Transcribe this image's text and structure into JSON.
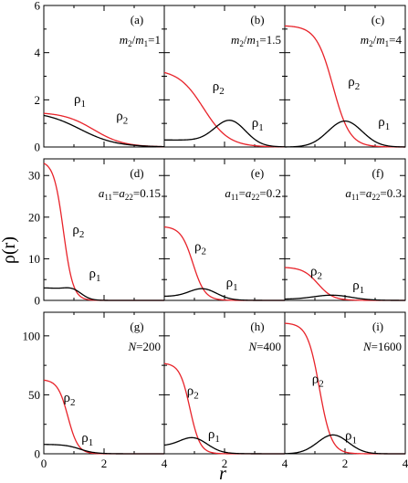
{
  "chart_data": {
    "type": "line",
    "grid": false,
    "xlabel": "r",
    "ylabel": "ρ(r)",
    "xlim": [
      0,
      4
    ],
    "x_ticks": [
      "0",
      "2",
      "4"
    ],
    "colors": {
      "rho1": "#000000",
      "rho2": "#e8232a"
    },
    "rows": [
      {
        "ylim": [
          0,
          6
        ],
        "y_ticks": [
          "0",
          "2",
          "4",
          "6"
        ]
      },
      {
        "ylim": [
          0,
          34
        ],
        "y_ticks": [
          "0",
          "10",
          "20",
          "30"
        ]
      },
      {
        "ylim": [
          0,
          120
        ],
        "y_ticks": [
          "0",
          "50",
          "100"
        ]
      }
    ],
    "panels": [
      {
        "id": "a",
        "row": 0,
        "col": 0,
        "tag": "(a)",
        "label": "m2/m1=1",
        "label_parts": [
          [
            "m",
            1
          ],
          [
            "2",
            2
          ],
          [
            "/",
            0
          ],
          [
            "m",
            1
          ],
          [
            "1",
            2
          ],
          [
            "=1",
            0
          ]
        ],
        "rho1": {
          "amp": 1.52,
          "r0": 1.2,
          "w": 0.6,
          "peak": 0
        },
        "rho2": {
          "amp": 1.48,
          "r0": 1.65,
          "w": 0.5,
          "peak": 0
        },
        "rho1_label": [
          1.0,
          1.85
        ],
        "rho2_label": [
          2.4,
          1.15
        ]
      },
      {
        "id": "b",
        "row": 0,
        "col": 1,
        "tag": "(b)",
        "label": "m2/m1=1.5",
        "label_parts": [
          [
            "m",
            1
          ],
          [
            "2",
            2
          ],
          [
            "/",
            0
          ],
          [
            "m",
            1
          ],
          [
            "1",
            2
          ],
          [
            "=1.5",
            0
          ]
        ],
        "rho1": {
          "amp": 0.98,
          "r0": 2.2,
          "w": 0.45,
          "peak": 1,
          "base": 0.3
        },
        "rho2": {
          "amp": 3.3,
          "r0": 1.3,
          "w": 0.42,
          "peak": 0
        },
        "rho1_label": [
          2.9,
          0.85
        ],
        "rho2_label": [
          1.6,
          2.4
        ]
      },
      {
        "id": "c",
        "row": 0,
        "col": 2,
        "tag": "(c)",
        "label": "m2/m1=4",
        "label_parts": [
          [
            "m",
            1
          ],
          [
            "2",
            2
          ],
          [
            "/",
            0
          ],
          [
            "m",
            1
          ],
          [
            "1",
            2
          ],
          [
            "=4",
            0
          ]
        ],
        "rho1": {
          "amp": 1.1,
          "r0": 2.0,
          "w": 0.5,
          "peak": 1,
          "base": 0
        },
        "rho2": {
          "amp": 5.15,
          "r0": 1.6,
          "w": 0.28,
          "peak": 0
        },
        "rho1_label": [
          3.1,
          0.9
        ],
        "rho2_label": [
          2.1,
          2.6
        ]
      },
      {
        "id": "d",
        "row": 1,
        "col": 0,
        "tag": "(d)",
        "label": "a11=a22=0.15",
        "label_parts": [
          [
            "a",
            1
          ],
          [
            "11",
            2
          ],
          [
            "=",
            0
          ],
          [
            "a",
            1
          ],
          [
            "22",
            2
          ],
          [
            "=0.15",
            0
          ]
        ],
        "rho1": {
          "amp": 4.2,
          "r0": 1.0,
          "w": 0.35,
          "peak": 2,
          "base": 3.0
        },
        "rho2": {
          "amp": 33.5,
          "r0": 0.65,
          "w": 0.16,
          "peak": 0
        },
        "rho1_label": [
          1.5,
          5.5
        ],
        "rho2_label": [
          0.95,
          16
        ]
      },
      {
        "id": "e",
        "row": 1,
        "col": 1,
        "tag": "(e)",
        "label": "a11=a22=0.2",
        "label_parts": [
          [
            "a",
            1
          ],
          [
            "11",
            2
          ],
          [
            "=",
            0
          ],
          [
            "a",
            1
          ],
          [
            "22",
            2
          ],
          [
            "=0.2",
            0
          ]
        ],
        "rho1": {
          "amp": 2.3,
          "r0": 1.3,
          "w": 0.4,
          "peak": 1,
          "base": 1.0
        },
        "rho2": {
          "amp": 17.8,
          "r0": 0.95,
          "w": 0.2,
          "peak": 0
        },
        "rho1_label": [
          2.05,
          3.3
        ],
        "rho2_label": [
          1.0,
          12
        ]
      },
      {
        "id": "f",
        "row": 1,
        "col": 2,
        "tag": "(f)",
        "label": "a11=a22=0.3",
        "label_parts": [
          [
            "a",
            1
          ],
          [
            "11",
            2
          ],
          [
            "=",
            0
          ],
          [
            "a",
            1
          ],
          [
            "22",
            2
          ],
          [
            "=0.3",
            0
          ]
        ],
        "rho1": {
          "amp": 1.1,
          "r0": 1.6,
          "w": 0.55,
          "peak": 1,
          "base": 0.3
        },
        "rho2": {
          "amp": 8.0,
          "r0": 1.1,
          "w": 0.25,
          "peak": 0
        },
        "rho1_label": [
          2.25,
          2.6
        ],
        "rho2_label": [
          0.85,
          6.0
        ]
      },
      {
        "id": "g",
        "row": 2,
        "col": 0,
        "tag": "(g)",
        "label": "N=200",
        "label_parts": [
          [
            "N",
            1
          ],
          [
            "=200",
            0
          ]
        ],
        "rho1": {
          "amp": 8.0,
          "r0": 1.2,
          "w": 0.25,
          "peak": 0
        },
        "rho2": {
          "amp": 63,
          "r0": 0.8,
          "w": 0.17,
          "peak": 0
        },
        "rho1_label": [
          1.25,
          10
        ],
        "rho2_label": [
          0.65,
          44
        ]
      },
      {
        "id": "h",
        "row": 2,
        "col": 1,
        "tag": "(h)",
        "label": "N=400",
        "label_parts": [
          [
            "N",
            1
          ],
          [
            "=400",
            0
          ]
        ],
        "rho1": {
          "amp": 10,
          "r0": 1.0,
          "w": 0.4,
          "peak": 1,
          "base": 7
        },
        "rho2": {
          "amp": 77,
          "r0": 0.85,
          "w": 0.17,
          "peak": 0
        },
        "rho1_label": [
          1.45,
          13
        ],
        "rho2_label": [
          0.75,
          50
        ]
      },
      {
        "id": "i",
        "row": 2,
        "col": 2,
        "tag": "(i)",
        "label": "N=1600",
        "label_parts": [
          [
            "N",
            1
          ],
          [
            "=1600",
            0
          ]
        ],
        "rho1": {
          "amp": 16,
          "r0": 1.6,
          "w": 0.45,
          "peak": 1,
          "base": 0
        },
        "rho2": {
          "amp": 111,
          "r0": 1.15,
          "w": 0.2,
          "peak": 0
        },
        "rho1_label": [
          2.0,
          12
        ],
        "rho2_label": [
          0.9,
          60
        ]
      }
    ]
  }
}
